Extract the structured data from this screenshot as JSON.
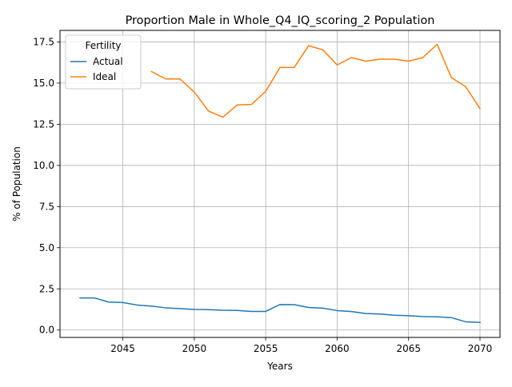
{
  "chart_data": {
    "type": "line",
    "title": "Proportion Male in Whole_Q4_IQ_scoring_2 Population",
    "xlabel": "Years",
    "ylabel": "% of Population",
    "xlim": [
      2040.6,
      2071.4
    ],
    "ylim": [
      -0.45,
      18.2
    ],
    "xticks": [
      2045,
      2050,
      2055,
      2060,
      2065,
      2070
    ],
    "yticks": [
      0.0,
      2.5,
      5.0,
      7.5,
      10.0,
      12.5,
      15.0,
      17.5
    ],
    "grid": true,
    "legend": {
      "title": "Fertility",
      "position": "top-left"
    },
    "series": [
      {
        "name": "Actual",
        "color": "#1f77b4",
        "x": [
          2042,
          2043,
          2044,
          2045,
          2046,
          2047,
          2048,
          2049,
          2050,
          2051,
          2052,
          2053,
          2054,
          2055,
          2056,
          2057,
          2058,
          2059,
          2060,
          2061,
          2062,
          2063,
          2064,
          2065,
          2066,
          2067,
          2068,
          2069,
          2070
        ],
        "y": [
          1.95,
          1.95,
          1.7,
          1.67,
          1.52,
          1.45,
          1.35,
          1.3,
          1.25,
          1.24,
          1.2,
          1.19,
          1.13,
          1.13,
          1.55,
          1.54,
          1.37,
          1.33,
          1.18,
          1.12,
          1.0,
          0.97,
          0.9,
          0.87,
          0.82,
          0.8,
          0.75,
          0.5,
          0.46
        ]
      },
      {
        "name": "Ideal",
        "color": "#ff7f0e",
        "x": [
          2047,
          2048,
          2049,
          2050,
          2051,
          2052,
          2053,
          2054,
          2055,
          2056,
          2057,
          2058,
          2059,
          2060,
          2061,
          2062,
          2063,
          2064,
          2065,
          2066,
          2067,
          2068,
          2069,
          2070
        ],
        "y": [
          15.7,
          15.25,
          15.25,
          14.45,
          13.3,
          12.93,
          13.67,
          13.7,
          14.5,
          15.95,
          15.95,
          17.27,
          17.02,
          16.1,
          16.55,
          16.33,
          16.45,
          16.45,
          16.33,
          16.55,
          17.35,
          15.33,
          14.78,
          13.45
        ]
      }
    ]
  }
}
